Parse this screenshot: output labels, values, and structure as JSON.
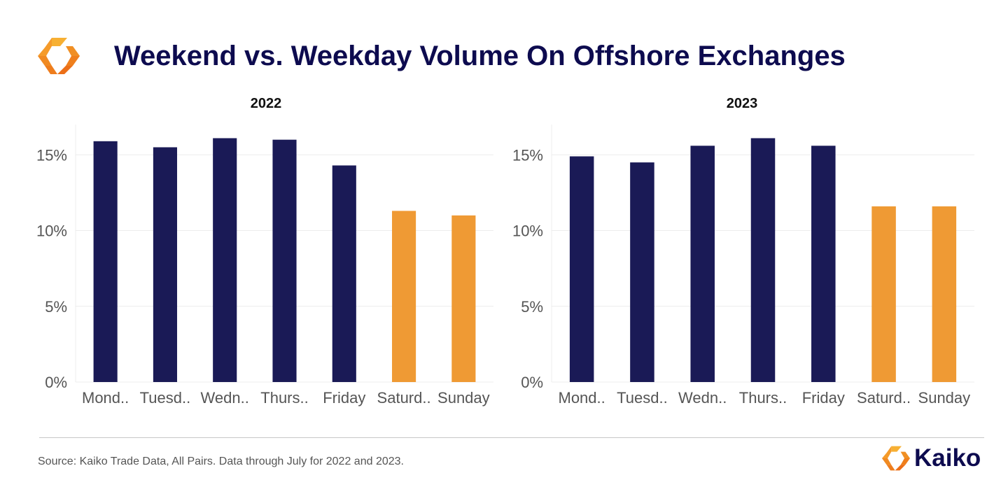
{
  "header": {
    "title": "Weekend vs. Weekday Volume On Offshore Exchanges",
    "logo_icon": "kaiko-diamond-icon"
  },
  "colors": {
    "weekday": "#1a1a56",
    "weekend": "#ef9a34",
    "title": "#0d0b4f",
    "grid": "#ececec",
    "tick_text": "#555555"
  },
  "chart_data": [
    {
      "type": "bar",
      "title": "2022",
      "categories": [
        "Mond..",
        "Tuesd..",
        "Wedn..",
        "Thurs..",
        "Friday",
        "Saturd..",
        "Sunday"
      ],
      "values": [
        15.9,
        15.5,
        16.1,
        16.0,
        14.3,
        11.3,
        11.0
      ],
      "weekend": [
        false,
        false,
        false,
        false,
        false,
        true,
        true
      ],
      "yticks": [
        "0%",
        "5%",
        "10%",
        "15%"
      ],
      "ylim": [
        0,
        17
      ],
      "grid": true
    },
    {
      "type": "bar",
      "title": "2023",
      "categories": [
        "Mond..",
        "Tuesd..",
        "Wedn..",
        "Thurs..",
        "Friday",
        "Saturd..",
        "Sunday"
      ],
      "values": [
        14.9,
        14.5,
        15.6,
        16.1,
        15.6,
        11.6,
        11.6
      ],
      "weekend": [
        false,
        false,
        false,
        false,
        false,
        true,
        true
      ],
      "yticks": [
        "0%",
        "5%",
        "10%",
        "15%"
      ],
      "ylim": [
        0,
        17
      ],
      "grid": true
    }
  ],
  "footer": {
    "source": "Source: Kaiko Trade Data, All Pairs. Data through July for 2022 and 2023.",
    "brand_name": "Kaiko",
    "brand_icon": "kaiko-diamond-icon"
  }
}
